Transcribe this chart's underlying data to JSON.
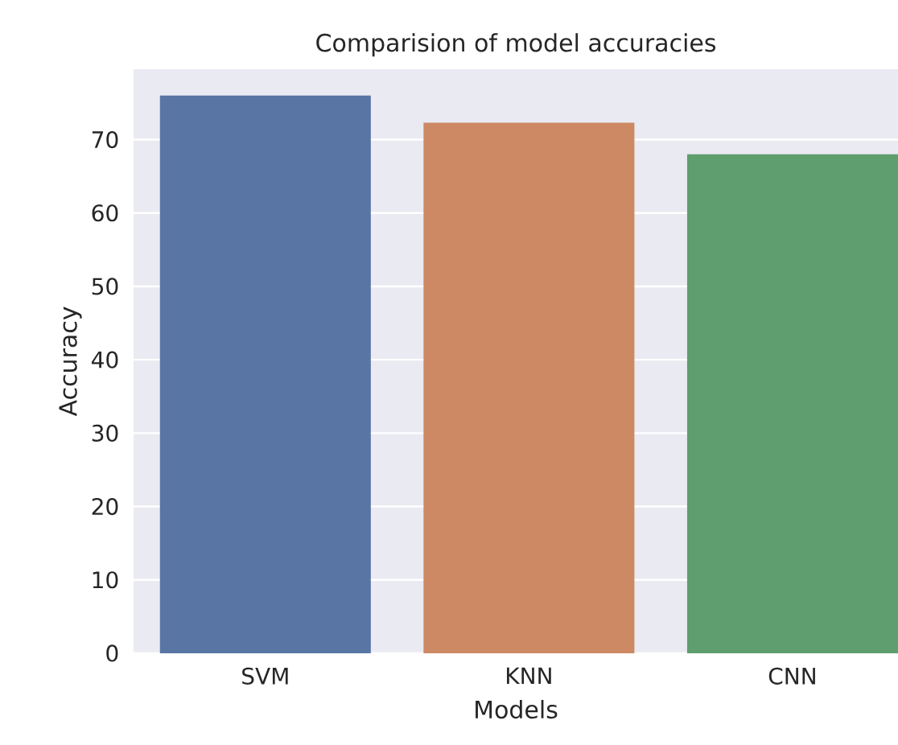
{
  "chart_data": {
    "type": "bar",
    "title": "Comparision of model accuracies",
    "xlabel": "Models",
    "ylabel": "Accuracy",
    "categories": [
      "SVM",
      "KNN",
      "CNN"
    ],
    "values": [
      76,
      72.3,
      68
    ],
    "colors": [
      "#5975a4",
      "#cc8963",
      "#5f9e6e"
    ],
    "ylim": [
      0,
      79.6
    ],
    "yticks": [
      0,
      10,
      20,
      30,
      40,
      50,
      60,
      70
    ],
    "grid": "y"
  }
}
